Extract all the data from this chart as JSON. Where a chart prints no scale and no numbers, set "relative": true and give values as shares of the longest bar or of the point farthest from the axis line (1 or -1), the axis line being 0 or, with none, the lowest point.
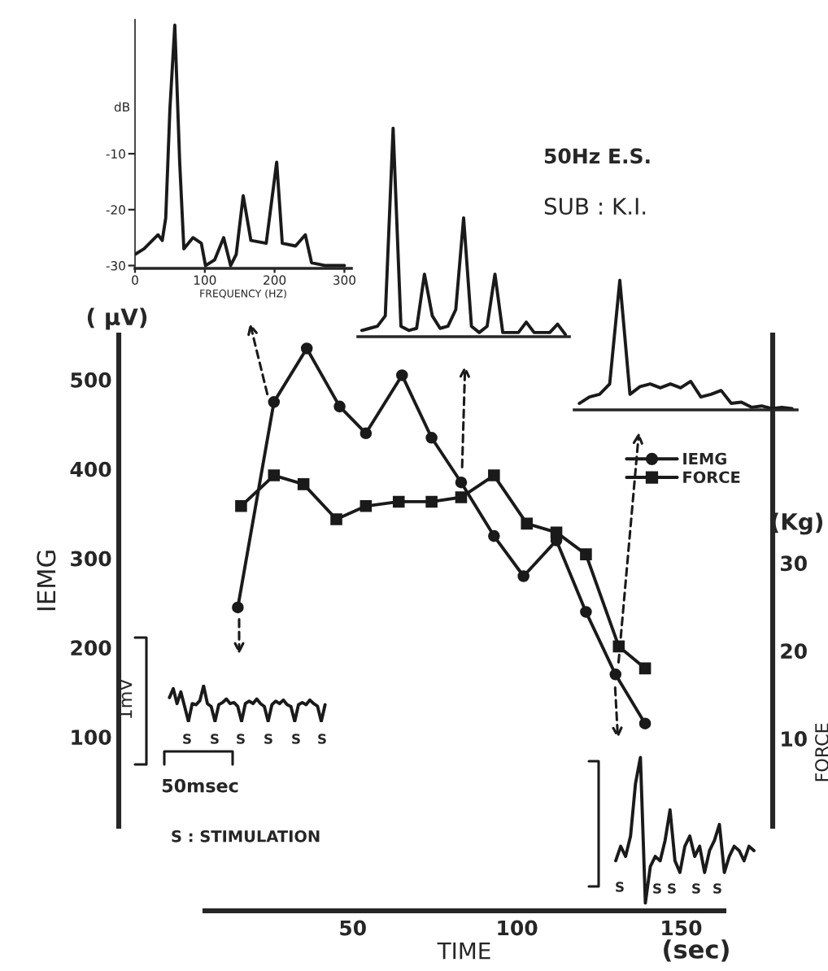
{
  "chart_data": [
    {
      "type": "line",
      "xlabel": "TIME",
      "ylabel": "IEMG",
      "y2label": "FORCE",
      "xlim": [
        5,
        163
      ],
      "xticks": [
        50,
        100,
        150
      ],
      "ylim": [
        0,
        550
      ],
      "yticks": [
        100,
        200,
        300,
        400,
        500
      ],
      "y2lim": [
        0,
        56
      ],
      "y2ticks": [
        10,
        20,
        30
      ],
      "legend": "top right",
      "annotations": [
        "( µV)",
        "(Kg)",
        "(sec)",
        "50Hz E.S.",
        "SUB : K.I."
      ],
      "series": [
        {
          "name": "IEMG",
          "color": "#1a1a1a",
          "marker": "circle",
          "x": [
            15,
            26,
            36,
            46,
            54,
            65,
            74,
            83,
            93,
            102,
            112,
            121,
            130,
            139
          ],
          "values": [
            245,
            475,
            535,
            470,
            440,
            505,
            435,
            385,
            325,
            280,
            320,
            240,
            170,
            115
          ]
        },
        {
          "name": "FORCE",
          "color": "#1a1a1a",
          "marker": "square",
          "axis": "y2",
          "x": [
            16,
            26,
            35,
            45,
            54,
            64,
            74,
            83,
            93,
            103,
            112,
            121,
            131,
            139
          ],
          "values": [
            36.5,
            40,
            39,
            35,
            36.5,
            37,
            37,
            37.5,
            40,
            34.5,
            33.5,
            31,
            20.5,
            18
          ]
        }
      ]
    },
    {
      "type": "line",
      "xlabel": "FREQUENCY (HZ)",
      "ylabel": "dB",
      "xlim": [
        0,
        310
      ],
      "xticks": [
        0,
        100,
        200,
        300
      ],
      "ylim": [
        -30.5,
        14
      ],
      "yticks": [
        -10,
        -20,
        -30
      ],
      "series": [
        {
          "color": "#1a1a1a",
          "x": [
            0,
            13,
            33,
            39,
            44,
            50,
            57,
            64,
            70,
            83,
            95,
            101,
            114,
            127,
            137,
            145,
            155,
            166,
            188,
            203,
            211,
            230,
            244,
            253,
            273,
            300
          ],
          "values": [
            -28,
            -27,
            -24.5,
            -25.5,
            -21.5,
            -2,
            13,
            -11.5,
            -27,
            -25,
            -26,
            -30,
            -29,
            -25,
            -30,
            -28,
            -17.5,
            -25.5,
            -26,
            -11.5,
            -26,
            -26.5,
            -24.5,
            -29.5,
            -30,
            -30
          ]
        }
      ]
    },
    {
      "type": "line",
      "relative": true,
      "categories": [
        null,
        null,
        null,
        null,
        null,
        null,
        null,
        null,
        null,
        null,
        null,
        null,
        null,
        null,
        null,
        null,
        null,
        null,
        null,
        null,
        null,
        null,
        null,
        null,
        null,
        null,
        null
      ],
      "series": [
        {
          "color": "#1a1a1a",
          "values": [
            0.03,
            0.04,
            0.05,
            0.1,
            1.0,
            0.05,
            0.03,
            0.04,
            0.3,
            0.1,
            0.04,
            0.05,
            0.13,
            0.57,
            0.05,
            0.02,
            0.05,
            0.3,
            0.02,
            0.02,
            0.02,
            0.07,
            0.02,
            0.02,
            0.02,
            0.06,
            0.01
          ]
        }
      ]
    },
    {
      "type": "line",
      "relative": true,
      "categories": [
        null,
        null,
        null,
        null,
        null,
        null,
        null,
        null,
        null,
        null,
        null,
        null,
        null,
        null,
        null,
        null,
        null,
        null,
        null,
        null,
        null,
        null
      ],
      "series": [
        {
          "color": "#1a1a1a",
          "values": [
            0.05,
            0.1,
            0.12,
            0.2,
            1.0,
            0.12,
            0.18,
            0.2,
            0.17,
            0.2,
            0.17,
            0.22,
            0.1,
            0.12,
            0.15,
            0.05,
            0.06,
            0.02,
            0.03,
            0.01,
            0.02,
            0.01
          ]
        }
      ]
    },
    {
      "type": "line",
      "relative": true,
      "annotations": [
        "1mV",
        "50msec",
        "S",
        "S",
        "S",
        "S",
        "S",
        "S",
        "S : STIMULATION"
      ],
      "categories": [
        null,
        null,
        null,
        null,
        null,
        null,
        null,
        null,
        null,
        null,
        null,
        null,
        null,
        null,
        null,
        null,
        null,
        null,
        null,
        null,
        null,
        null,
        null,
        null,
        null,
        null,
        null,
        null,
        null,
        null,
        null,
        null,
        null,
        null,
        null,
        null,
        null,
        null,
        null,
        null,
        null,
        null
      ],
      "series": [
        {
          "color": "#1a1a1a",
          "values": [
            0.67,
            0.92,
            0.5,
            0.83,
            0.42,
            0,
            0.5,
            0.47,
            0.58,
            1.0,
            0.5,
            0.42,
            0,
            0.47,
            0.53,
            0.63,
            0.5,
            0.53,
            0.42,
            0,
            0.5,
            0.57,
            0.5,
            0.63,
            0.5,
            0.42,
            0,
            0.47,
            0.57,
            0.5,
            0.6,
            0.47,
            0.42,
            0,
            0.47,
            0.53,
            0.47,
            0.6,
            0.5,
            0.43,
            0,
            0.47
          ]
        }
      ]
    },
    {
      "type": "line",
      "relative": true,
      "annotations": [
        "S",
        "S",
        "S",
        "S",
        "S"
      ],
      "categories": [
        null,
        null,
        null,
        null,
        null,
        null,
        null,
        null,
        null,
        null,
        null,
        null,
        null,
        null,
        null,
        null,
        null,
        null,
        null,
        null,
        null,
        null,
        null,
        null,
        null,
        null,
        null,
        null,
        null
      ],
      "series": [
        {
          "color": "#1a1a1a",
          "values": [
            0.29,
            0.39,
            0.32,
            0.46,
            0.82,
            1.0,
            0,
            0.25,
            0.32,
            0.29,
            0.43,
            0.64,
            0.29,
            0.21,
            0.39,
            0.46,
            0.32,
            0.39,
            0.21,
            0.36,
            0.43,
            0.54,
            0.21,
            0.32,
            0.39,
            0.36,
            0.29,
            0.39,
            0.36
          ]
        }
      ]
    }
  ]
}
